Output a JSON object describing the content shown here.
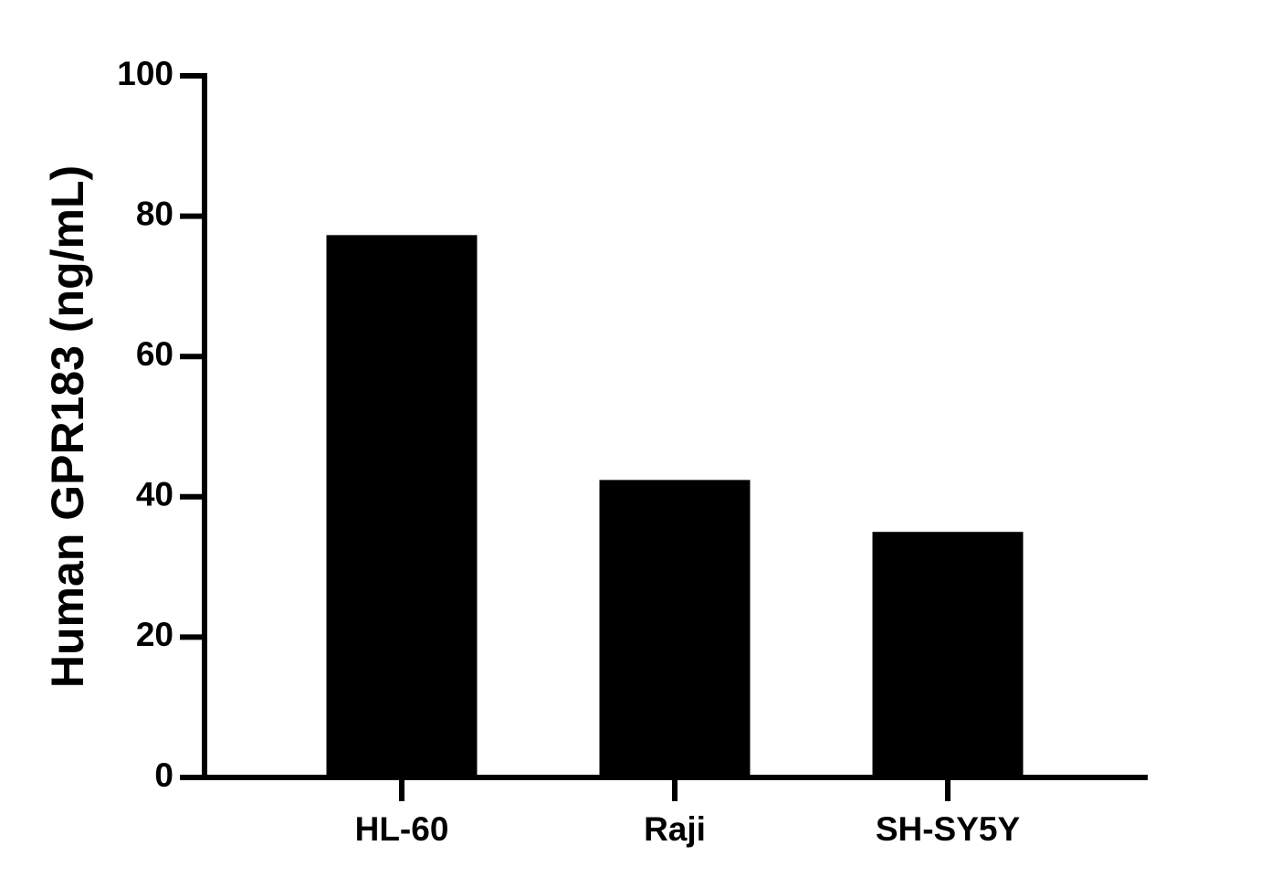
{
  "chart_data": {
    "type": "bar",
    "y_label": "Human GPR183 (ng/mL)",
    "categories": [
      "HL-60",
      "Raji",
      "SH-SY5Y"
    ],
    "values": [
      77.3,
      42.4,
      35.0
    ],
    "color": "#000000",
    "ylim": [
      0,
      100
    ],
    "yticks": [
      0,
      20,
      40,
      60,
      80,
      100
    ],
    "grid": false
  }
}
